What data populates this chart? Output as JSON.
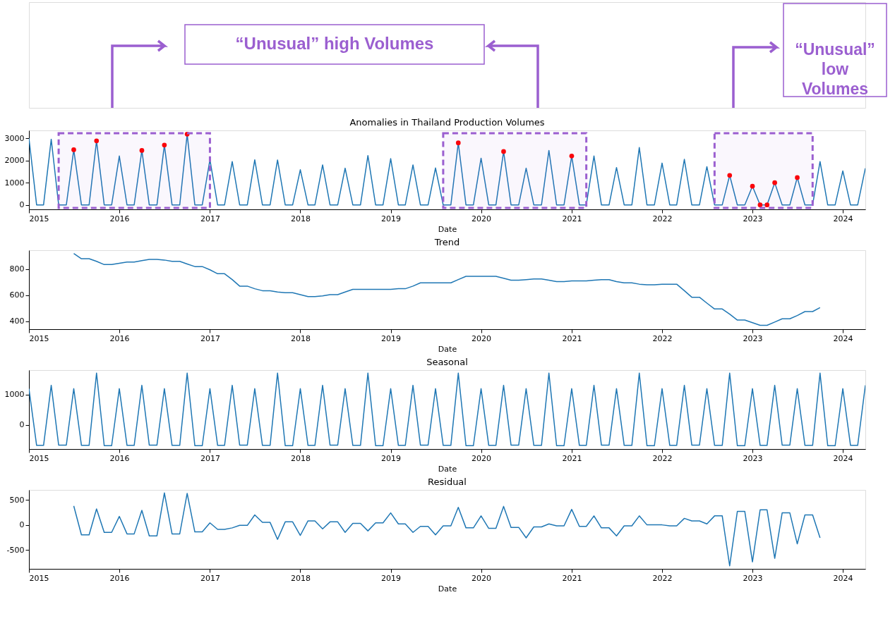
{
  "chart_data": [
    {
      "type": "line",
      "title": "Anomalies in Thailand Production Volumes",
      "xlabel": "Date",
      "annotations": [
        "“Unusual” high Volumes",
        "“Unusual”\nlow\nVolumes"
      ],
      "x": [
        "2015-01",
        "2015-02",
        "2015-03",
        "2015-04",
        "2015-05",
        "2015-06",
        "2015-07",
        "2015-08",
        "2015-09",
        "2015-10",
        "2015-11",
        "2015-12",
        "2016-01",
        "2016-02",
        "2016-03",
        "2016-04",
        "2016-05",
        "2016-06",
        "2016-07",
        "2016-08",
        "2016-09",
        "2016-10",
        "2016-11",
        "2016-12",
        "2017-01",
        "2017-02",
        "2017-03",
        "2017-04",
        "2017-05",
        "2017-06",
        "2017-07",
        "2017-08",
        "2017-09",
        "2017-10",
        "2017-11",
        "2017-12",
        "2018-01",
        "2018-02",
        "2018-03",
        "2018-04",
        "2018-05",
        "2018-06",
        "2018-07",
        "2018-08",
        "2018-09",
        "2018-10",
        "2018-11",
        "2018-12",
        "2019-01",
        "2019-02",
        "2019-03",
        "2019-04",
        "2019-05",
        "2019-06",
        "2019-07",
        "2019-08",
        "2019-09",
        "2019-10",
        "2019-11",
        "2019-12",
        "2020-01",
        "2020-02",
        "2020-03",
        "2020-04",
        "2020-05",
        "2020-06",
        "2020-07",
        "2020-08",
        "2020-09",
        "2020-10",
        "2020-11",
        "2020-12",
        "2021-01",
        "2021-02",
        "2021-03",
        "2021-04",
        "2021-05",
        "2021-06",
        "2021-07",
        "2021-08",
        "2021-09",
        "2021-10",
        "2021-11",
        "2021-12",
        "2022-01",
        "2022-02",
        "2022-03",
        "2022-04",
        "2022-05",
        "2022-06",
        "2022-07",
        "2022-08",
        "2022-09",
        "2022-10",
        "2022-11",
        "2022-12",
        "2023-01",
        "2023-02",
        "2023-03",
        "2023-04",
        "2023-05",
        "2023-06",
        "2023-07",
        "2023-08",
        "2023-09",
        "2023-10",
        "2023-11",
        "2023-12",
        "2024-01",
        "2024-02",
        "2024-03",
        "2024-04"
      ],
      "series": [
        {
          "color": "#1f77b4",
          "values": [
            3000,
            0,
            0,
            2950,
            0,
            0,
            2480,
            0,
            0,
            2880,
            0,
            0,
            2200,
            0,
            0,
            2450,
            0,
            0,
            2690,
            0,
            0,
            3180,
            0,
            0,
            2030,
            0,
            0,
            1950,
            0,
            0,
            2030,
            0,
            0,
            2020,
            0,
            0,
            1580,
            0,
            0,
            1800,
            0,
            0,
            1650,
            0,
            0,
            2220,
            0,
            0,
            2080,
            0,
            0,
            1800,
            0,
            0,
            1660,
            0,
            0,
            2790,
            0,
            0,
            2100,
            0,
            0,
            2400,
            0,
            0,
            1650,
            0,
            0,
            2450,
            0,
            0,
            2200,
            0,
            0,
            2200,
            0,
            0,
            1680,
            0,
            0,
            2580,
            0,
            0,
            1880,
            0,
            0,
            2050,
            0,
            0,
            1720,
            0,
            0,
            1330,
            0,
            0,
            840,
            0,
            0,
            1000,
            0,
            0,
            1230,
            0,
            0,
            1950,
            0,
            0,
            1530,
            0,
            0,
            1650
          ]
        },
        {
          "type": "scatter",
          "marker": "circle",
          "color": "#ff0000",
          "x": [
            "2015-07",
            "2015-10",
            "2016-04",
            "2016-07",
            "2016-10",
            "2019-10",
            "2020-04",
            "2021-01",
            "2022-10",
            "2023-01",
            "2023-02",
            "2023-03",
            "2023-04",
            "2023-07"
          ],
          "values": [
            2480,
            2880,
            2450,
            2690,
            3180,
            2790,
            2400,
            2200,
            1330,
            840,
            0,
            0,
            1000,
            1230
          ]
        }
      ],
      "bands": [
        {
          "axis": "x",
          "from": "2015-05",
          "to": "2017-01",
          "color": "#9b5fd0"
        },
        {
          "axis": "x",
          "from": "2019-08",
          "to": "2021-03",
          "color": "#9b5fd0"
        },
        {
          "axis": "x",
          "from": "2022-08",
          "to": "2023-09",
          "color": "#9b5fd0"
        }
      ],
      "xlim": [
        "2015-01",
        "2024-04"
      ],
      "xticks": [
        "2015",
        "2016",
        "2017",
        "2018",
        "2019",
        "2020",
        "2021",
        "2022",
        "2023",
        "2024"
      ],
      "ylim": [
        -200,
        3350
      ],
      "yticks": [
        0,
        1000,
        2000,
        3000
      ],
      "grid": false
    },
    {
      "type": "line",
      "title": "Trend",
      "xlabel": "Date",
      "series": [
        {
          "color": "#1f77b4",
          "x": [
            "2015-07",
            "2015-08",
            "2015-09",
            "2015-10",
            "2015-11",
            "2015-12",
            "2016-01",
            "2016-02",
            "2016-03",
            "2016-04",
            "2016-05",
            "2016-06",
            "2016-07",
            "2016-08",
            "2016-09",
            "2016-10",
            "2016-11",
            "2016-12",
            "2017-01",
            "2017-02",
            "2017-03",
            "2017-04",
            "2017-05",
            "2017-06",
            "2017-07",
            "2017-08",
            "2017-09",
            "2017-10",
            "2017-11",
            "2017-12",
            "2018-01",
            "2018-02",
            "2018-03",
            "2018-04",
            "2018-05",
            "2018-06",
            "2018-07",
            "2018-08",
            "2018-09",
            "2018-10",
            "2018-11",
            "2018-12",
            "2019-01",
            "2019-02",
            "2019-03",
            "2019-04",
            "2019-05",
            "2019-06",
            "2019-07",
            "2019-08",
            "2019-09",
            "2019-10",
            "2019-11",
            "2019-12",
            "2020-01",
            "2020-02",
            "2020-03",
            "2020-04",
            "2020-05",
            "2020-06",
            "2020-07",
            "2020-08",
            "2020-09",
            "2020-10",
            "2020-11",
            "2020-12",
            "2021-01",
            "2021-02",
            "2021-03",
            "2021-04",
            "2021-05",
            "2021-06",
            "2021-07",
            "2021-08",
            "2021-09",
            "2021-10",
            "2021-11",
            "2021-12",
            "2022-01",
            "2022-02",
            "2022-03",
            "2022-04",
            "2022-05",
            "2022-06",
            "2022-07",
            "2022-08",
            "2022-09",
            "2022-10",
            "2022-11",
            "2022-12",
            "2023-01",
            "2023-02",
            "2023-03",
            "2023-04",
            "2023-05",
            "2023-06",
            "2023-07",
            "2023-08",
            "2023-09",
            "2023-10"
          ],
          "values": [
            920,
            880,
            880,
            860,
            835,
            835,
            845,
            855,
            855,
            865,
            875,
            875,
            870,
            860,
            860,
            840,
            820,
            820,
            795,
            765,
            765,
            720,
            670,
            670,
            650,
            635,
            635,
            625,
            620,
            620,
            605,
            590,
            590,
            595,
            605,
            605,
            625,
            645,
            645,
            645,
            645,
            645,
            645,
            650,
            650,
            670,
            695,
            695,
            695,
            695,
            695,
            720,
            745,
            745,
            745,
            745,
            745,
            730,
            715,
            715,
            720,
            725,
            725,
            715,
            705,
            705,
            710,
            710,
            710,
            715,
            720,
            720,
            705,
            695,
            695,
            685,
            680,
            680,
            685,
            685,
            685,
            635,
            585,
            585,
            540,
            495,
            495,
            455,
            410,
            410,
            390,
            370,
            370,
            395,
            420,
            420,
            445,
            475,
            475,
            505
          ]
        }
      ],
      "xlim": [
        "2015-01",
        "2024-04"
      ],
      "xticks": [
        "2015",
        "2016",
        "2017",
        "2018",
        "2019",
        "2020",
        "2021",
        "2022",
        "2023",
        "2024"
      ],
      "ylim": [
        340,
        945
      ],
      "yticks": [
        400,
        600,
        800
      ],
      "grid": false
    },
    {
      "type": "line",
      "title": "Seasonal",
      "xlabel": "Date",
      "x": [
        "2015-01",
        "2015-02",
        "2015-03",
        "2015-04",
        "2015-05",
        "2015-06",
        "2015-07",
        "2015-08",
        "2015-09",
        "2015-10",
        "2015-11",
        "2015-12",
        "2016-01",
        "2016-02",
        "2016-03",
        "2016-04",
        "2016-05",
        "2016-06",
        "2016-07",
        "2016-08",
        "2016-09",
        "2016-10",
        "2016-11",
        "2016-12",
        "2017-01",
        "2017-02",
        "2017-03",
        "2017-04",
        "2017-05",
        "2017-06",
        "2017-07",
        "2017-08",
        "2017-09",
        "2017-10",
        "2017-11",
        "2017-12",
        "2018-01",
        "2018-02",
        "2018-03",
        "2018-04",
        "2018-05",
        "2018-06",
        "2018-07",
        "2018-08",
        "2018-09",
        "2018-10",
        "2018-11",
        "2018-12",
        "2019-01",
        "2019-02",
        "2019-03",
        "2019-04",
        "2019-05",
        "2019-06",
        "2019-07",
        "2019-08",
        "2019-09",
        "2019-10",
        "2019-11",
        "2019-12",
        "2020-01",
        "2020-02",
        "2020-03",
        "2020-04",
        "2020-05",
        "2020-06",
        "2020-07",
        "2020-08",
        "2020-09",
        "2020-10",
        "2020-11",
        "2020-12",
        "2021-01",
        "2021-02",
        "2021-03",
        "2021-04",
        "2021-05",
        "2021-06",
        "2021-07",
        "2021-08",
        "2021-09",
        "2021-10",
        "2021-11",
        "2021-12",
        "2022-01",
        "2022-02",
        "2022-03",
        "2022-04",
        "2022-05",
        "2022-06",
        "2022-07",
        "2022-08",
        "2022-09",
        "2022-10",
        "2022-11",
        "2022-12",
        "2023-01",
        "2023-02",
        "2023-03",
        "2023-04",
        "2023-05",
        "2023-06",
        "2023-07",
        "2023-08",
        "2023-09",
        "2023-10",
        "2023-11",
        "2023-12",
        "2024-01",
        "2024-02",
        "2024-03",
        "2024-04"
      ],
      "series": [
        {
          "color": "#1f77b4",
          "values": [
            1190,
            -670,
            -670,
            1300,
            -660,
            -660,
            1190,
            -670,
            -670,
            1700,
            -680,
            -680,
            1190,
            -670,
            -670,
            1300,
            -660,
            -660,
            1190,
            -670,
            -670,
            1700,
            -680,
            -680,
            1190,
            -670,
            -670,
            1300,
            -660,
            -660,
            1190,
            -670,
            -670,
            1700,
            -680,
            -680,
            1190,
            -670,
            -670,
            1300,
            -660,
            -660,
            1190,
            -670,
            -670,
            1700,
            -680,
            -680,
            1190,
            -670,
            -670,
            1300,
            -660,
            -660,
            1190,
            -670,
            -670,
            1700,
            -680,
            -680,
            1190,
            -670,
            -670,
            1300,
            -660,
            -660,
            1190,
            -670,
            -670,
            1700,
            -680,
            -680,
            1190,
            -670,
            -670,
            1300,
            -660,
            -660,
            1190,
            -670,
            -670,
            1700,
            -680,
            -680,
            1190,
            -670,
            -670,
            1300,
            -660,
            -660,
            1190,
            -670,
            -670,
            1700,
            -680,
            -680,
            1190,
            -670,
            -670,
            1300,
            -660,
            -660,
            1190,
            -670,
            -670,
            1700,
            -680,
            -680,
            1190,
            -670,
            -670,
            1300
          ]
        }
      ],
      "xlim": [
        "2015-01",
        "2024-04"
      ],
      "xticks": [
        "2015",
        "2016",
        "2017",
        "2018",
        "2019",
        "2020",
        "2021",
        "2022",
        "2023",
        "2024"
      ],
      "ylim": [
        -790,
        1800
      ],
      "yticks": [
        0,
        {
          "value": 1000,
          "label": "1000"
        }
      ],
      "grid": false
    },
    {
      "type": "line",
      "title": "Residual",
      "xlabel": "Date",
      "series": [
        {
          "color": "#1f77b4",
          "x": [
            "2015-07",
            "2015-08",
            "2015-09",
            "2015-10",
            "2015-11",
            "2015-12",
            "2016-01",
            "2016-02",
            "2016-03",
            "2016-04",
            "2016-05",
            "2016-06",
            "2016-07",
            "2016-08",
            "2016-09",
            "2016-10",
            "2016-11",
            "2016-12",
            "2017-01",
            "2017-02",
            "2017-03",
            "2017-04",
            "2017-05",
            "2017-06",
            "2017-07",
            "2017-08",
            "2017-09",
            "2017-10",
            "2017-11",
            "2017-12",
            "2018-01",
            "2018-02",
            "2018-03",
            "2018-04",
            "2018-05",
            "2018-06",
            "2018-07",
            "2018-08",
            "2018-09",
            "2018-10",
            "2018-11",
            "2018-12",
            "2019-01",
            "2019-02",
            "2019-03",
            "2019-04",
            "2019-05",
            "2019-06",
            "2019-07",
            "2019-08",
            "2019-09",
            "2019-10",
            "2019-11",
            "2019-12",
            "2020-01",
            "2020-02",
            "2020-03",
            "2020-04",
            "2020-05",
            "2020-06",
            "2020-07",
            "2020-08",
            "2020-09",
            "2020-10",
            "2020-11",
            "2020-12",
            "2021-01",
            "2021-02",
            "2021-03",
            "2021-04",
            "2021-05",
            "2021-06",
            "2021-07",
            "2021-08",
            "2021-09",
            "2021-10",
            "2021-11",
            "2021-12",
            "2022-01",
            "2022-02",
            "2022-03",
            "2022-04",
            "2022-05",
            "2022-06",
            "2022-07",
            "2022-08",
            "2022-09",
            "2022-10",
            "2022-11",
            "2022-12",
            "2023-01",
            "2023-02",
            "2023-03",
            "2023-04",
            "2023-05",
            "2023-06",
            "2023-07",
            "2023-08",
            "2023-09",
            "2023-10"
          ],
          "values": [
            380,
            -200,
            -200,
            320,
            -150,
            -150,
            170,
            -180,
            -180,
            290,
            -220,
            -220,
            640,
            -180,
            -180,
            630,
            -140,
            -140,
            40,
            -90,
            -90,
            -60,
            -10,
            -10,
            200,
            50,
            50,
            -290,
            60,
            60,
            -210,
            80,
            80,
            -80,
            60,
            60,
            -150,
            30,
            30,
            -120,
            40,
            40,
            240,
            20,
            20,
            -150,
            -30,
            -30,
            -200,
            -20,
            -20,
            350,
            -60,
            -60,
            180,
            -70,
            -70,
            370,
            -50,
            -50,
            -260,
            -40,
            -40,
            20,
            -20,
            -20,
            310,
            -30,
            -30,
            180,
            -60,
            -60,
            -220,
            -20,
            -20,
            180,
            0,
            0,
            0,
            -20,
            -20,
            130,
            80,
            80,
            20,
            180,
            180,
            -820,
            270,
            270,
            -740,
            300,
            300,
            -670,
            240,
            240,
            -380,
            200,
            200,
            -260
          ]
        }
      ],
      "xlim": [
        "2015-01",
        "2024-04"
      ],
      "xticks": [
        "2015",
        "2016",
        "2017",
        "2018",
        "2019",
        "2020",
        "2021",
        "2022",
        "2023",
        "2024"
      ],
      "ylim": [
        -880,
        700
      ],
      "yticks": [
        -500,
        0,
        500
      ],
      "grid": false
    }
  ]
}
